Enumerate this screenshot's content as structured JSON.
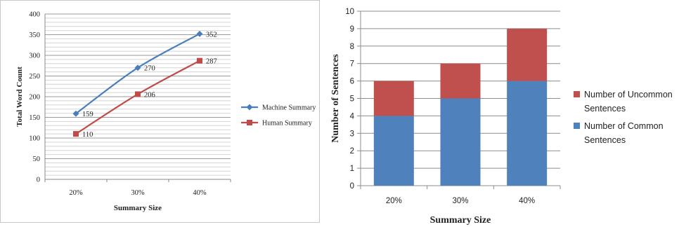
{
  "chart_data": [
    {
      "type": "line",
      "categories": [
        "20%",
        "30%",
        "40%"
      ],
      "series": [
        {
          "name": "Machine Summary",
          "values": [
            159,
            270,
            352
          ],
          "color": "#4a7ebb",
          "marker": "diamond"
        },
        {
          "name": "Human Summary",
          "values": [
            110,
            206,
            287
          ],
          "color": "#be4b48",
          "marker": "square"
        }
      ],
      "xlabel": "Summary Size",
      "ylabel": "Total Word Count",
      "ylim": [
        0,
        400
      ],
      "yticks": [
        0,
        50,
        100,
        150,
        200,
        250,
        300,
        350,
        400
      ],
      "grid": true,
      "legend": "right"
    },
    {
      "type": "bar",
      "stacked": true,
      "categories": [
        "20%",
        "30%",
        "40%"
      ],
      "series": [
        {
          "name": "Number of Common Sentences",
          "name_lines": [
            "Number of Common",
            "Sentences"
          ],
          "values": [
            4,
            5,
            6
          ],
          "color": "#4f81bd"
        },
        {
          "name": "Number of Uncommon Sentences",
          "name_lines": [
            "Number of Uncommon",
            "Sentences"
          ],
          "values": [
            2,
            2,
            3
          ],
          "color": "#c0504d"
        }
      ],
      "xlabel": "Summary Size",
      "ylabel": "Number of Sentences",
      "ylim": [
        0,
        10
      ],
      "yticks": [
        0,
        1,
        2,
        3,
        4,
        5,
        6,
        7,
        8,
        9,
        10
      ],
      "grid": true,
      "legend": "right"
    }
  ]
}
